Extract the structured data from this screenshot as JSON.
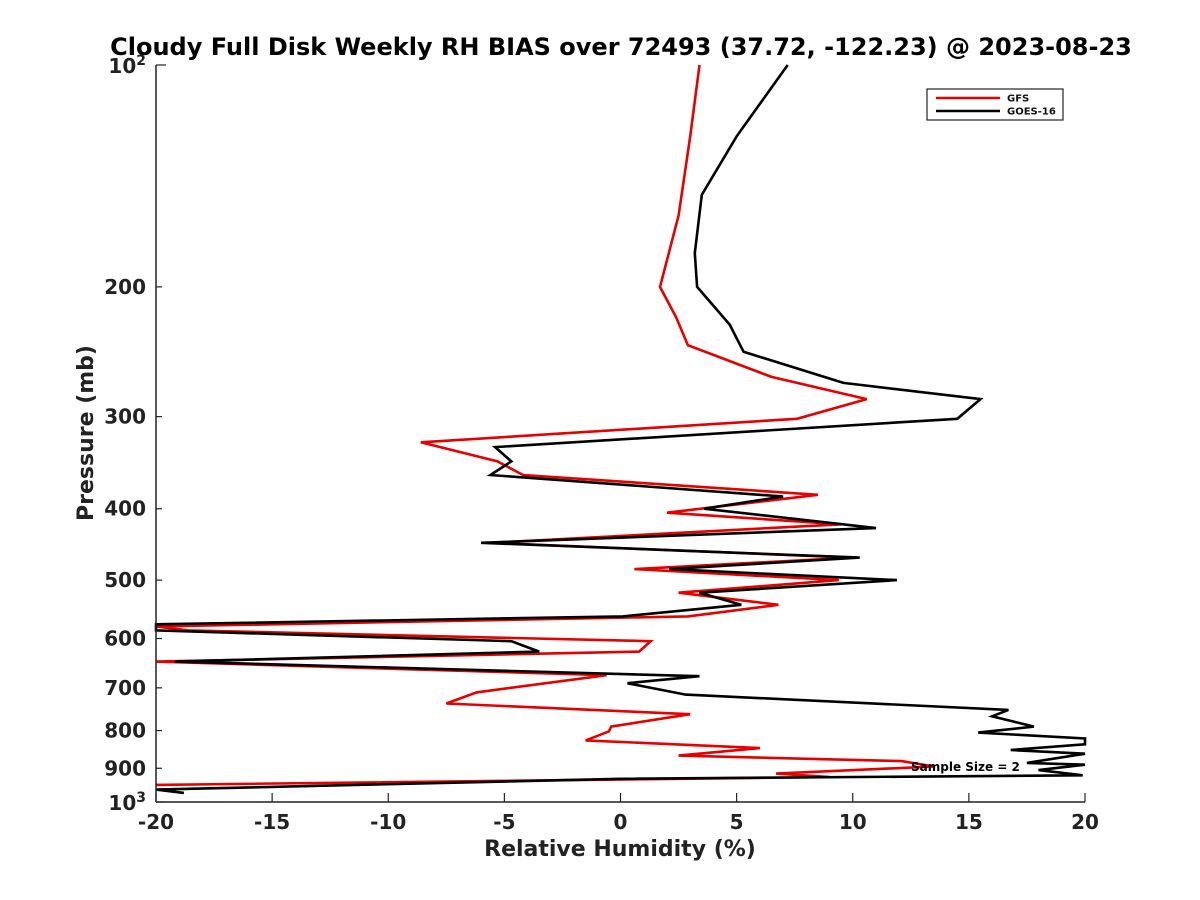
{
  "chart_data": {
    "type": "line",
    "title": "Cloudy Full Disk Weekly RH BIAS over 72493 (37.72, -122.23) @ 2023-08-23",
    "xlabel": "Relative Humidity (%)",
    "ylabel": "Pressure (mb)",
    "xlim": [
      -20,
      20
    ],
    "ylim": [
      100,
      1000
    ],
    "yscale": "log",
    "y_reversed": true,
    "grid": false,
    "legend_position": "top-right",
    "xticks": [
      -20,
      -15,
      -10,
      -5,
      0,
      5,
      10,
      15,
      20
    ],
    "xtick_labels": [
      "-20",
      "-15",
      "-10",
      "-5",
      "0",
      "5",
      "10",
      "15",
      "20"
    ],
    "yticks_minor_labeled": [
      {
        "value": 200,
        "label": "200"
      },
      {
        "value": 300,
        "label": "300"
      },
      {
        "value": 400,
        "label": "400"
      },
      {
        "value": 500,
        "label": "500"
      },
      {
        "value": 600,
        "label": "600"
      },
      {
        "value": 700,
        "label": "700"
      },
      {
        "value": 800,
        "label": "800"
      },
      {
        "value": 900,
        "label": "900"
      }
    ],
    "yticks_major": [
      {
        "value": 100,
        "base": "10",
        "exp": "2"
      },
      {
        "value": 1000,
        "base": "10",
        "exp": "3"
      }
    ],
    "annotation": "Sample Size = 2",
    "series": [
      {
        "name": "GFS",
        "color": "#e60000",
        "points": [
          [
            3.4,
            100
          ],
          [
            3.0,
            125
          ],
          [
            2.5,
            160
          ],
          [
            1.7,
            200
          ],
          [
            2.4,
            220
          ],
          [
            2.9,
            240
          ],
          [
            6.5,
            265
          ],
          [
            10.6,
            284
          ],
          [
            7.6,
            302
          ],
          [
            -8.6,
            325
          ],
          [
            -5.3,
            345
          ],
          [
            -4.2,
            360
          ],
          [
            8.5,
            383
          ],
          [
            2.0,
            405
          ],
          [
            9.5,
            420
          ],
          [
            -5.6,
            445
          ],
          [
            10.0,
            466
          ],
          [
            0.6,
            483
          ],
          [
            9.4,
            500
          ],
          [
            2.5,
            520
          ],
          [
            6.8,
            540
          ],
          [
            2.9,
            560
          ],
          [
            -20.0,
            578
          ],
          [
            -18.6,
            585
          ],
          [
            1.3,
            605
          ],
          [
            0.8,
            625
          ],
          [
            -20.0,
            645
          ],
          [
            -0.6,
            673
          ],
          [
            -6.2,
            710
          ],
          [
            -7.5,
            735
          ],
          [
            3.0,
            760
          ],
          [
            -0.4,
            790
          ],
          [
            -0.5,
            802
          ],
          [
            -1.5,
            825
          ],
          [
            6.0,
            845
          ],
          [
            2.5,
            865
          ],
          [
            12.1,
            880
          ],
          [
            13.5,
            895
          ],
          [
            6.7,
            915
          ],
          [
            9.0,
            925
          ],
          [
            -20.0,
            948
          ]
        ]
      },
      {
        "name": "GOES-16",
        "color": "#000000",
        "points": [
          [
            7.2,
            100
          ],
          [
            5.0,
            125
          ],
          [
            3.5,
            150
          ],
          [
            3.2,
            180
          ],
          [
            3.3,
            200
          ],
          [
            4.7,
            225
          ],
          [
            5.3,
            245
          ],
          [
            9.6,
            270
          ],
          [
            15.5,
            284
          ],
          [
            14.5,
            302
          ],
          [
            -5.4,
            330
          ],
          [
            -4.7,
            345
          ],
          [
            -5.6,
            360
          ],
          [
            7.0,
            385
          ],
          [
            3.6,
            400
          ],
          [
            11.0,
            425
          ],
          [
            -6.0,
            445
          ],
          [
            10.3,
            466
          ],
          [
            2.1,
            483
          ],
          [
            11.9,
            500
          ],
          [
            3.4,
            520
          ],
          [
            5.2,
            540
          ],
          [
            0.1,
            560
          ],
          [
            -20.0,
            574
          ],
          [
            -20.0,
            585
          ],
          [
            -4.7,
            605
          ],
          [
            -3.5,
            625
          ],
          [
            -19.2,
            645
          ],
          [
            3.4,
            675
          ],
          [
            0.3,
            690
          ],
          [
            2.8,
            715
          ],
          [
            16.7,
            750
          ],
          [
            16.0,
            765
          ],
          [
            17.8,
            790
          ],
          [
            15.4,
            805
          ],
          [
            20.0,
            820
          ],
          [
            20.0,
            835
          ],
          [
            16.8,
            850
          ],
          [
            20.0,
            860
          ],
          [
            17.5,
            885
          ],
          [
            20.0,
            890
          ],
          [
            18.0,
            905
          ],
          [
            19.9,
            920
          ],
          [
            0.0,
            930
          ],
          [
            -20.0,
            962
          ],
          [
            -18.8,
            972
          ]
        ]
      }
    ]
  }
}
